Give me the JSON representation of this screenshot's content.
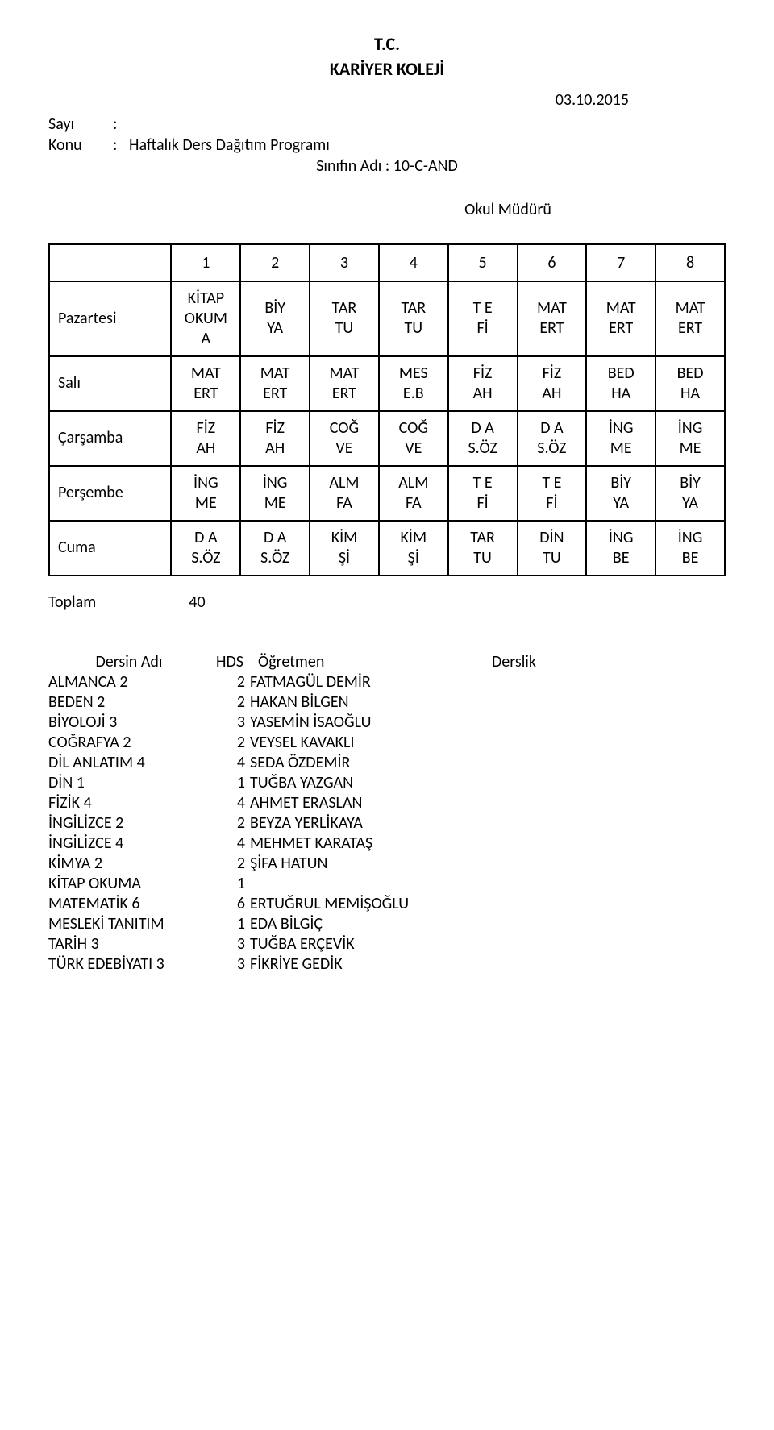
{
  "header": {
    "line1": "T.C.",
    "line2": "KARİYER KOLEJİ",
    "date": "03.10.2015",
    "sayi_label": "Sayı",
    "sayi_value": "",
    "konu_label": "Konu",
    "konu_value": "Haftalık Ders Dağıtım Programı",
    "class_label": "Sınıfın Adı : 10-C-AND",
    "okul_mud": "Okul Müdürü"
  },
  "colors": {
    "background": "#ffffff",
    "text": "#000000",
    "border": "#000000"
  },
  "timetable": {
    "periods": [
      "1",
      "2",
      "3",
      "4",
      "5",
      "6",
      "7",
      "8"
    ],
    "days": [
      "Pazartesi",
      "Salı",
      "Çarşamba",
      "Perşembe",
      "Cuma"
    ],
    "cells": [
      [
        {
          "l1": "KİTAP",
          "l2": "OKUM",
          "l3": "A"
        },
        {
          "l1": "BİY",
          "l2": "YA"
        },
        {
          "l1": "TAR",
          "l2": "TU"
        },
        {
          "l1": "TAR",
          "l2": "TU"
        },
        {
          "l1": "T E",
          "l2": "Fİ"
        },
        {
          "l1": "MAT",
          "l2": "ERT"
        },
        {
          "l1": "MAT",
          "l2": "ERT"
        },
        {
          "l1": "MAT",
          "l2": "ERT"
        }
      ],
      [
        {
          "l1": "MAT",
          "l2": "ERT"
        },
        {
          "l1": "MAT",
          "l2": "ERT"
        },
        {
          "l1": "MAT",
          "l2": "ERT"
        },
        {
          "l1": "MES",
          "l2": "E.B"
        },
        {
          "l1": "FİZ",
          "l2": "AH"
        },
        {
          "l1": "FİZ",
          "l2": "AH"
        },
        {
          "l1": "BED",
          "l2": "HA"
        },
        {
          "l1": "BED",
          "l2": "HA"
        }
      ],
      [
        {
          "l1": "FİZ",
          "l2": "AH"
        },
        {
          "l1": "FİZ",
          "l2": "AH"
        },
        {
          "l1": "COĞ",
          "l2": "VE"
        },
        {
          "l1": "COĞ",
          "l2": "VE"
        },
        {
          "l1": "D A",
          "l2": "S.ÖZ"
        },
        {
          "l1": "D A",
          "l2": "S.ÖZ"
        },
        {
          "l1": "İNG",
          "l2": "ME"
        },
        {
          "l1": "İNG",
          "l2": "ME"
        }
      ],
      [
        {
          "l1": "İNG",
          "l2": "ME"
        },
        {
          "l1": "İNG",
          "l2": "ME"
        },
        {
          "l1": "ALM",
          "l2": "FA"
        },
        {
          "l1": "ALM",
          "l2": "FA"
        },
        {
          "l1": "T E",
          "l2": "Fİ"
        },
        {
          "l1": "T E",
          "l2": "Fİ"
        },
        {
          "l1": "BİY",
          "l2": "YA"
        },
        {
          "l1": "BİY",
          "l2": "YA"
        }
      ],
      [
        {
          "l1": "D A",
          "l2": "S.ÖZ"
        },
        {
          "l1": "D A",
          "l2": "S.ÖZ"
        },
        {
          "l1": "KİM",
          "l2": "Şİ"
        },
        {
          "l1": "KİM",
          "l2": "Şİ"
        },
        {
          "l1": "TAR",
          "l2": "TU"
        },
        {
          "l1": "DİN",
          "l2": "TU"
        },
        {
          "l1": "İNG",
          "l2": "BE"
        },
        {
          "l1": "İNG",
          "l2": "BE"
        }
      ]
    ]
  },
  "toplam": {
    "label": "Toplam",
    "value": "40"
  },
  "subjects_header": {
    "c1": "Dersin Adı",
    "c2": "HDS",
    "c3": "Öğretmen",
    "c4": "Derslik"
  },
  "subjects": [
    {
      "name": "ALMANCA 2",
      "hds": "2",
      "teacher": "FATMAGÜL DEMİR"
    },
    {
      "name": "BEDEN 2",
      "hds": "2",
      "teacher": "HAKAN BİLGEN"
    },
    {
      "name": "BİYOLOJİ 3",
      "hds": "3",
      "teacher": "YASEMİN İSAOĞLU"
    },
    {
      "name": "COĞRAFYA 2",
      "hds": "2",
      "teacher": "VEYSEL KAVAKLI"
    },
    {
      "name": "DİL ANLATIM 4",
      "hds": "4",
      "teacher": "SEDA ÖZDEMİR"
    },
    {
      "name": "DİN 1",
      "hds": "1",
      "teacher": "TUĞBA YAZGAN"
    },
    {
      "name": "FİZİK 4",
      "hds": "4",
      "teacher": "AHMET ERASLAN"
    },
    {
      "name": "İNGİLİZCE 2",
      "hds": "2",
      "teacher": "BEYZA YERLİKAYA"
    },
    {
      "name": "İNGİLİZCE 4",
      "hds": "4",
      "teacher": "MEHMET KARATAŞ"
    },
    {
      "name": "KİMYA 2",
      "hds": "2",
      "teacher": "ŞİFA HATUN"
    },
    {
      "name": "KİTAP OKUMA",
      "hds": "1",
      "teacher": ""
    },
    {
      "name": "MATEMATİK 6",
      "hds": "6",
      "teacher": "ERTUĞRUL MEMİŞOĞLU"
    },
    {
      "name": "MESLEKİ TANITIM",
      "hds": "1",
      "teacher": "EDA BİLGİÇ"
    },
    {
      "name": "TARİH 3",
      "hds": "3",
      "teacher": "TUĞBA ERÇEVİK"
    },
    {
      "name": "TÜRK EDEBİYATI 3",
      "hds": "3",
      "teacher": "FİKRİYE GEDİK"
    }
  ]
}
